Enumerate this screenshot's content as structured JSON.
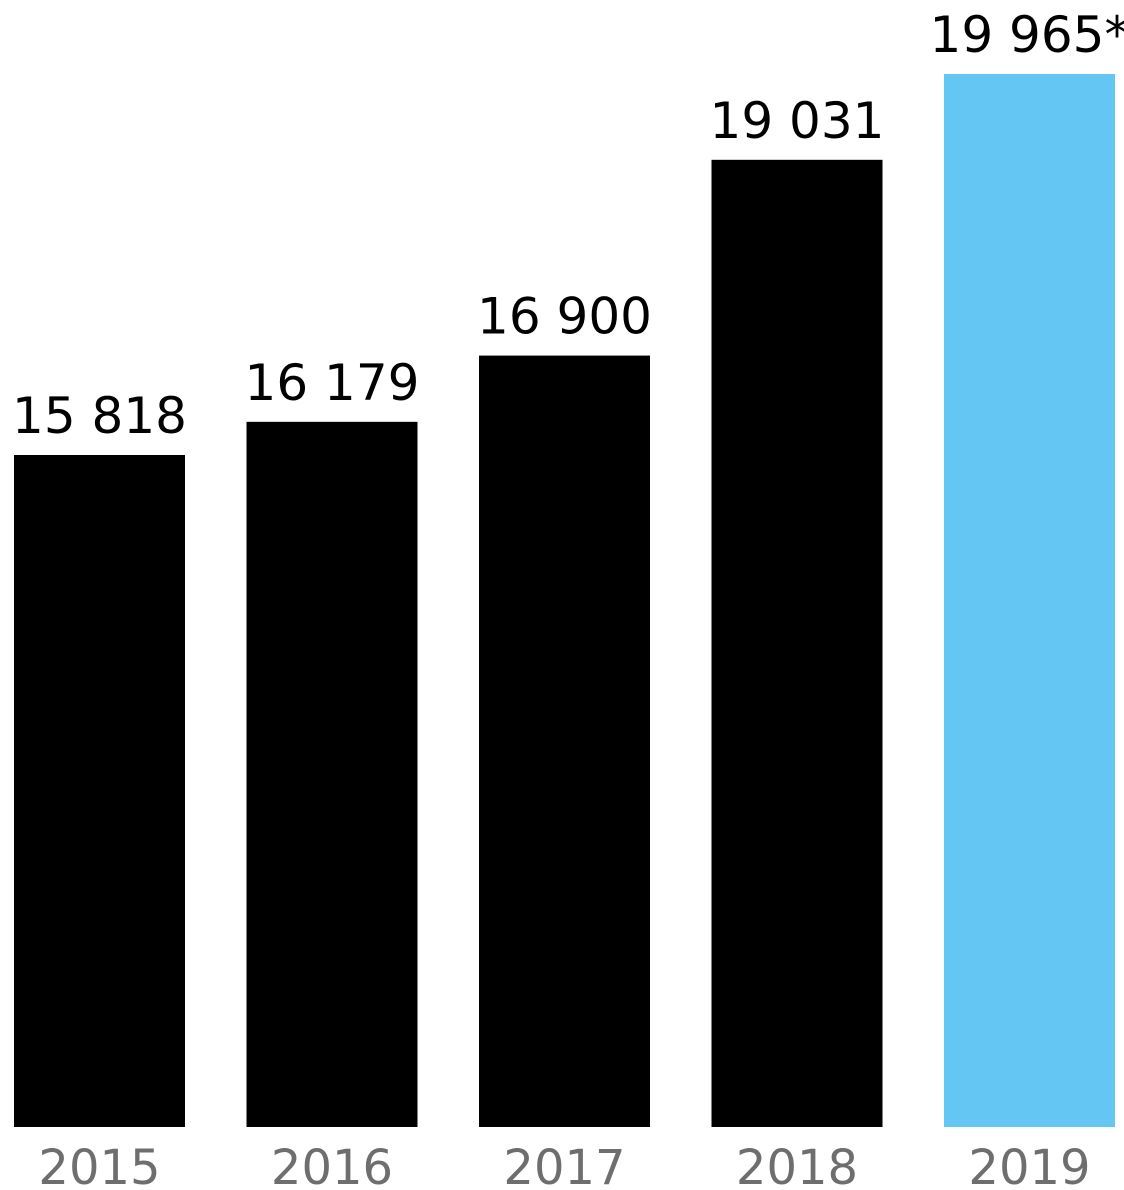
{
  "chart_data": {
    "type": "bar",
    "categories": [
      "2015",
      "2016",
      "2017",
      "2018",
      "2019"
    ],
    "values": [
      15818,
      16179,
      16900,
      19031,
      19965
    ],
    "value_labels": [
      "15 818",
      "16 179",
      "16 900",
      "19 031",
      "19 965*"
    ],
    "highlight_index": 4,
    "title": "",
    "xlabel": "",
    "ylabel": "",
    "grid": false,
    "legend": "none",
    "colors": {
      "bar": "#000000",
      "highlight": "#64C6F2",
      "value_label": "#000000",
      "tick_label": "#6E6E6E"
    }
  }
}
